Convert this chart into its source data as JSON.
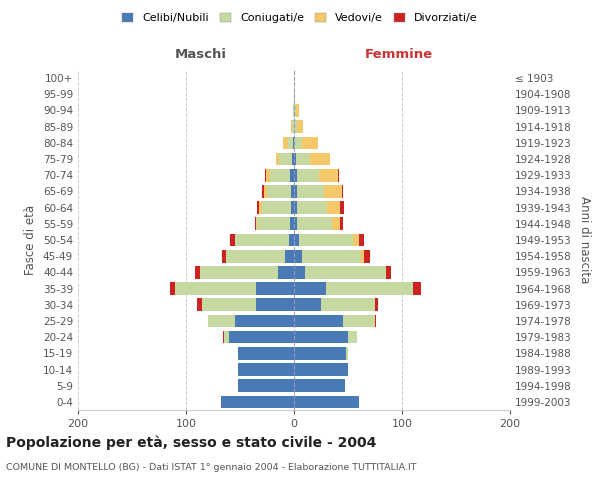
{
  "age_groups": [
    "0-4",
    "5-9",
    "10-14",
    "15-19",
    "20-24",
    "25-29",
    "30-34",
    "35-39",
    "40-44",
    "45-49",
    "50-54",
    "55-59",
    "60-64",
    "65-69",
    "70-74",
    "75-79",
    "80-84",
    "85-89",
    "90-94",
    "95-99",
    "100+"
  ],
  "birth_years": [
    "1999-2003",
    "1994-1998",
    "1989-1993",
    "1984-1988",
    "1979-1983",
    "1974-1978",
    "1969-1973",
    "1964-1968",
    "1959-1963",
    "1954-1958",
    "1949-1953",
    "1944-1948",
    "1939-1943",
    "1934-1938",
    "1929-1933",
    "1924-1928",
    "1919-1923",
    "1914-1918",
    "1909-1913",
    "1904-1908",
    "≤ 1903"
  ],
  "maschi": {
    "celibi": [
      68,
      52,
      52,
      52,
      60,
      55,
      35,
      35,
      15,
      8,
      5,
      4,
      3,
      3,
      4,
      2,
      1,
      0,
      0,
      0,
      0
    ],
    "coniugati": [
      0,
      0,
      0,
      0,
      5,
      25,
      50,
      75,
      72,
      55,
      50,
      30,
      27,
      22,
      18,
      12,
      5,
      2,
      1,
      0,
      0
    ],
    "vedovi": [
      0,
      0,
      0,
      0,
      0,
      0,
      0,
      0,
      0,
      0,
      0,
      1,
      2,
      3,
      4,
      3,
      4,
      1,
      0,
      0,
      0
    ],
    "divorziati": [
      0,
      0,
      0,
      0,
      1,
      0,
      5,
      5,
      5,
      4,
      4,
      1,
      2,
      2,
      1,
      0,
      0,
      0,
      0,
      0,
      0
    ]
  },
  "femmine": {
    "nubili": [
      60,
      47,
      50,
      48,
      50,
      45,
      25,
      30,
      10,
      7,
      5,
      3,
      3,
      3,
      3,
      2,
      0,
      0,
      0,
      0,
      0
    ],
    "coniugate": [
      0,
      0,
      0,
      2,
      8,
      30,
      50,
      80,
      75,
      55,
      50,
      32,
      28,
      25,
      20,
      13,
      7,
      3,
      2,
      0,
      0
    ],
    "vedove": [
      0,
      0,
      0,
      0,
      0,
      0,
      0,
      0,
      0,
      3,
      5,
      8,
      12,
      16,
      18,
      18,
      15,
      5,
      3,
      1,
      0
    ],
    "divorziate": [
      0,
      0,
      0,
      0,
      0,
      1,
      3,
      8,
      5,
      5,
      5,
      2,
      3,
      1,
      1,
      0,
      0,
      0,
      0,
      0,
      0
    ]
  },
  "colors": {
    "celibi": "#4a7ab5",
    "coniugati": "#c5d9a0",
    "vedovi": "#f5c96a",
    "divorziati": "#cc2222"
  },
  "xlim": [
    -200,
    200
  ],
  "xticks": [
    -200,
    -100,
    0,
    100,
    200
  ],
  "xticklabels": [
    "200",
    "100",
    "0",
    "100",
    "200"
  ],
  "title": "Popolazione per età, sesso e stato civile - 2004",
  "subtitle": "COMUNE DI MONTELLO (BG) - Dati ISTAT 1° gennaio 2004 - Elaborazione TUTTITALIA.IT",
  "ylabel_left": "Fasce di età",
  "ylabel_right": "Anni di nascita",
  "header_left": "Maschi",
  "header_right": "Femmine",
  "legend_labels": [
    "Celibi/Nubili",
    "Coniugati/e",
    "Vedovi/e",
    "Divorziati/e"
  ],
  "background_color": "#ffffff",
  "plot_bg_color": "#ffffff",
  "grid_color": "#cccccc"
}
